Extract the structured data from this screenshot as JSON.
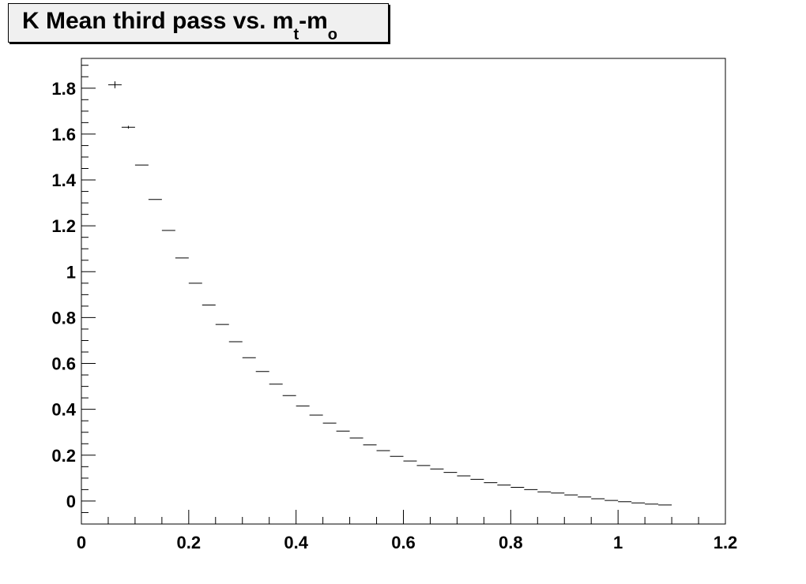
{
  "title": {
    "main": "K Mean third pass vs. m",
    "sub1": "t",
    "mid": "-m",
    "sub2": "o"
  },
  "chart_data": {
    "type": "scatter",
    "title": "K Mean third pass vs. mt-mo",
    "xlabel": "",
    "ylabel": "",
    "xlim": [
      0,
      1.2
    ],
    "ylim": [
      -0.1,
      1.93
    ],
    "x_ticks": [
      "0",
      "0.2",
      "0.4",
      "0.6",
      "0.8",
      "1",
      "1.2"
    ],
    "y_ticks": [
      "0",
      "0.2",
      "0.4",
      "0.6",
      "0.8",
      "1",
      "1.2",
      "1.4",
      "1.6",
      "1.8"
    ],
    "bin_width": 0.025,
    "grid": false,
    "legend": "none",
    "points": [
      {
        "x": 0.0625,
        "y": 1.815,
        "yerr": 0.015
      },
      {
        "x": 0.0875,
        "y": 1.63,
        "yerr": 0.006
      },
      {
        "x": 0.1125,
        "y": 1.465,
        "yerr": 0
      },
      {
        "x": 0.1375,
        "y": 1.315,
        "yerr": 0
      },
      {
        "x": 0.1625,
        "y": 1.18,
        "yerr": 0
      },
      {
        "x": 0.1875,
        "y": 1.06,
        "yerr": 0
      },
      {
        "x": 0.2125,
        "y": 0.95,
        "yerr": 0
      },
      {
        "x": 0.2375,
        "y": 0.855,
        "yerr": 0
      },
      {
        "x": 0.2625,
        "y": 0.77,
        "yerr": 0
      },
      {
        "x": 0.2875,
        "y": 0.695,
        "yerr": 0
      },
      {
        "x": 0.3125,
        "y": 0.625,
        "yerr": 0
      },
      {
        "x": 0.3375,
        "y": 0.565,
        "yerr": 0
      },
      {
        "x": 0.3625,
        "y": 0.51,
        "yerr": 0
      },
      {
        "x": 0.3875,
        "y": 0.46,
        "yerr": 0
      },
      {
        "x": 0.4125,
        "y": 0.415,
        "yerr": 0
      },
      {
        "x": 0.4375,
        "y": 0.375,
        "yerr": 0
      },
      {
        "x": 0.4625,
        "y": 0.34,
        "yerr": 0
      },
      {
        "x": 0.4875,
        "y": 0.305,
        "yerr": 0
      },
      {
        "x": 0.5125,
        "y": 0.275,
        "yerr": 0
      },
      {
        "x": 0.5375,
        "y": 0.245,
        "yerr": 0
      },
      {
        "x": 0.5625,
        "y": 0.22,
        "yerr": 0
      },
      {
        "x": 0.5875,
        "y": 0.195,
        "yerr": 0
      },
      {
        "x": 0.6125,
        "y": 0.175,
        "yerr": 0
      },
      {
        "x": 0.6375,
        "y": 0.155,
        "yerr": 0
      },
      {
        "x": 0.6625,
        "y": 0.14,
        "yerr": 0
      },
      {
        "x": 0.6875,
        "y": 0.125,
        "yerr": 0
      },
      {
        "x": 0.7125,
        "y": 0.11,
        "yerr": 0
      },
      {
        "x": 0.7375,
        "y": 0.095,
        "yerr": 0
      },
      {
        "x": 0.7625,
        "y": 0.08,
        "yerr": 0
      },
      {
        "x": 0.7875,
        "y": 0.07,
        "yerr": 0
      },
      {
        "x": 0.8125,
        "y": 0.06,
        "yerr": 0
      },
      {
        "x": 0.8375,
        "y": 0.05,
        "yerr": 0
      },
      {
        "x": 0.8625,
        "y": 0.04,
        "yerr": 0
      },
      {
        "x": 0.8875,
        "y": 0.035,
        "yerr": 0
      },
      {
        "x": 0.9125,
        "y": 0.027,
        "yerr": 0
      },
      {
        "x": 0.9375,
        "y": 0.018,
        "yerr": 0
      },
      {
        "x": 0.9625,
        "y": 0.01,
        "yerr": 0
      },
      {
        "x": 0.9875,
        "y": 0.003,
        "yerr": 0
      },
      {
        "x": 1.0125,
        "y": -0.003,
        "yerr": 0
      },
      {
        "x": 1.0375,
        "y": -0.008,
        "yerr": 0
      },
      {
        "x": 1.0625,
        "y": -0.013,
        "yerr": 0
      },
      {
        "x": 1.0875,
        "y": -0.017,
        "yerr": 0
      }
    ]
  }
}
